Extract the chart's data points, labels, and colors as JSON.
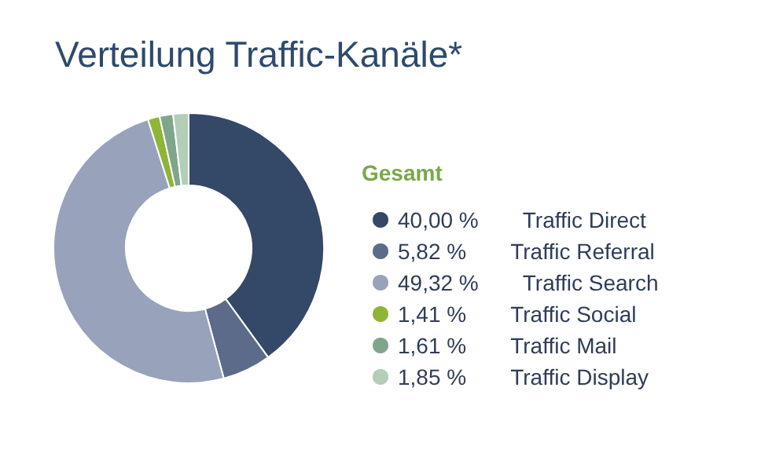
{
  "chart_data": {
    "type": "donut",
    "title": "Verteilung Traffic-Kanäle*",
    "legend_title": "Gesamt",
    "legend": "right",
    "categories": [
      "Traffic Direct",
      "Traffic Referral",
      "Traffic Search",
      "Traffic Social",
      "Traffic Mail",
      "Traffic Display"
    ],
    "values": [
      40.0,
      5.82,
      49.32,
      1.41,
      1.61,
      1.85
    ],
    "value_labels": [
      "40,00 %",
      "5,82 %",
      "49,32 %",
      "1,41 %",
      "1,61 %",
      "1,85 %"
    ],
    "colors": [
      "#344868",
      "#5c6b8a",
      "#98a2bb",
      "#8fb536",
      "#7fa68a",
      "#b2ceb6"
    ]
  }
}
